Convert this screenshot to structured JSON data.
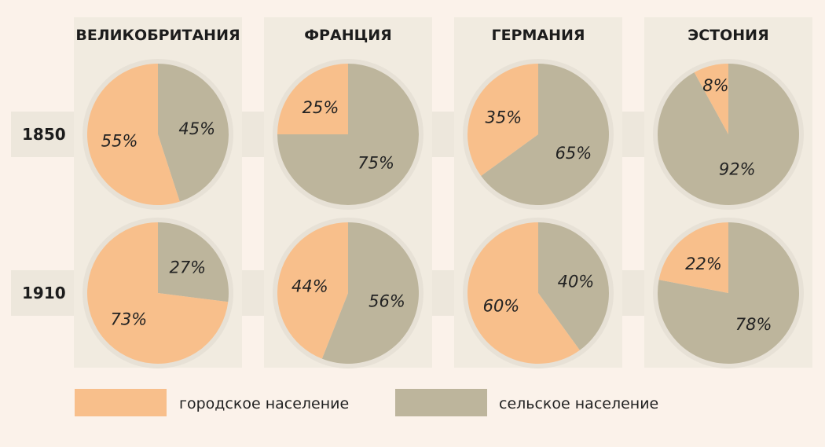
{
  "chart_data": {
    "type": "pie",
    "countries": [
      "ВЕЛИКОБРИТАНИЯ",
      "ФРАНЦИЯ",
      "ГЕРМАНИЯ",
      "ЭСТОНИЯ"
    ],
    "years": [
      "1850",
      "1910"
    ],
    "series": [
      {
        "name": "городское население",
        "color": "#f8bf8b"
      },
      {
        "name": "сельское население",
        "color": "#bdb59c"
      }
    ],
    "values": [
      [
        {
          "urban": 55,
          "rural": 45
        },
        {
          "urban": 25,
          "rural": 75
        },
        {
          "urban": 35,
          "rural": 65
        },
        {
          "urban": 8,
          "rural": 92
        }
      ],
      [
        {
          "urban": 73,
          "rural": 27
        },
        {
          "urban": 44,
          "rural": 56
        },
        {
          "urban": 60,
          "rural": 40
        },
        {
          "urban": 22,
          "rural": 78
        }
      ]
    ],
    "labels": [
      [
        {
          "urban": "55%",
          "rural": "45%"
        },
        {
          "urban": "25%",
          "rural": "75%"
        },
        {
          "urban": "35%",
          "rural": "65%"
        },
        {
          "urban": "8%",
          "rural": "92%"
        }
      ],
      [
        {
          "urban": "73%",
          "rural": "27%"
        },
        {
          "urban": "44%",
          "rural": "56%"
        },
        {
          "urban": "60%",
          "rural": "40%"
        },
        {
          "urban": "22%",
          "rural": "78%"
        }
      ]
    ],
    "legend_position": "bottom"
  },
  "colors": {
    "background": "#fbf2ea",
    "column_panel": "#f1ebe0",
    "row_band": "#ede7dc",
    "pie_ring": "#e7e1d6",
    "urban": "#f8bf8b",
    "rural": "#bdb59c"
  }
}
